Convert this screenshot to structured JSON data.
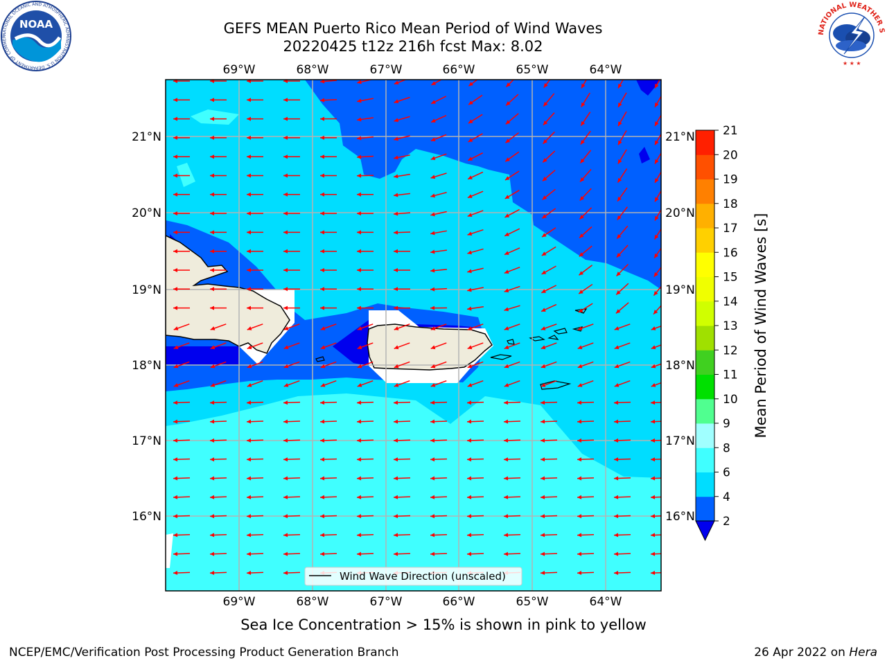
{
  "title": {
    "line1": "GEFS MEAN Puerto Rico Mean Period of Wind Waves",
    "line2": "20220425 t12z 216h fcst   Max: 8.02"
  },
  "map": {
    "lon_labels": [
      "69°W",
      "68°W",
      "67°W",
      "66°W",
      "65°W",
      "64°W"
    ],
    "lat_labels_left": [
      "21°N",
      "20°N",
      "19°N",
      "18°N",
      "17°N",
      "16°N"
    ],
    "lat_labels_right": [
      "21°N",
      "20°N",
      "19°N",
      "18°N",
      "17°N",
      "16°N"
    ],
    "legend": "Wind Wave Direction (unscaled)",
    "arrow_color": "#ff0000",
    "extent": {
      "lon_min": -70.0,
      "lon_max": -63.25,
      "lat_min": 15.0,
      "lat_max": 21.75
    }
  },
  "colorbar": {
    "label": "Mean Period of Wind Waves [s]",
    "ticks": [
      "2",
      "4",
      "6",
      "8",
      "9",
      "10",
      "11",
      "12",
      "13",
      "14",
      "15",
      "16",
      "17",
      "18",
      "19",
      "20",
      "21"
    ],
    "colors": [
      "#0060ff",
      "#00ddff",
      "#40ffff",
      "#a0ffff",
      "#50ff90",
      "#00e000",
      "#40d020",
      "#a0e000",
      "#d0ff00",
      "#f0ff00",
      "#ffff00",
      "#ffd000",
      "#ffb000",
      "#ff8000",
      "#ff5000",
      "#ff2000"
    ],
    "under_color": "#0000ee"
  },
  "logos": {
    "noaa_text": "NOAA",
    "noaa_ring_text": "NATIONAL OCEANIC AND ATMOSPHERIC ADMINISTRATION U.S. DEPARTMENT OF COMMERCE",
    "nws_ring_text": "NATIONAL WEATHER SERVICE"
  },
  "sea_ice_note": "Sea Ice Concentration > 15% is shown in pink to yellow",
  "footer": {
    "left": "NCEP/EMC/Verification Post Processing Product Generation Branch",
    "right_date": "26 Apr 2022 on ",
    "right_machine": "Hera"
  }
}
